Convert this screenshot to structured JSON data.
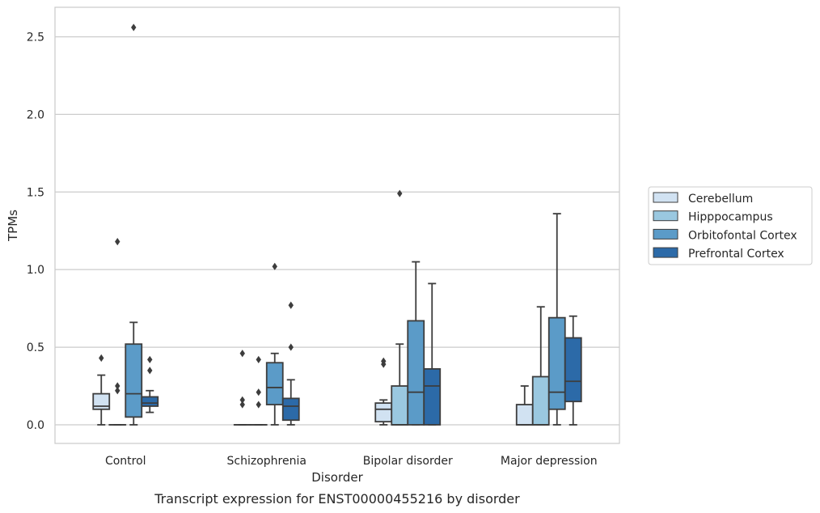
{
  "chart_data": {
    "type": "box",
    "caption": "Transcript expression for ENST00000455216 by disorder",
    "xlabel": "Disorder",
    "ylabel": "TPMs",
    "ylim": [
      -0.12,
      2.69
    ],
    "yticks": [
      0.0,
      0.5,
      1.0,
      1.5,
      2.0,
      2.5
    ],
    "ytick_labels": [
      "0.0",
      "0.5",
      "1.0",
      "1.5",
      "2.0",
      "2.5"
    ],
    "grid": true,
    "legend_position": "outside right",
    "categories": [
      "Control",
      "Schizophrenia",
      "Bipolar disorder",
      "Major depression"
    ],
    "series": [
      {
        "name": "Cerebellum",
        "color": "#d1e2f2",
        "boxes": [
          {
            "whislo": 0.0,
            "q1": 0.1,
            "med": 0.12,
            "q3": 0.2,
            "whishi": 0.32,
            "fliers": [
              0.43
            ]
          },
          {
            "whislo": 0.0,
            "q1": 0.0,
            "med": 0.0,
            "q3": 0.0,
            "whishi": 0.0,
            "fliers": [
              0.46,
              0.16,
              0.13
            ]
          },
          {
            "whislo": 0.0,
            "q1": 0.02,
            "med": 0.1,
            "q3": 0.14,
            "whishi": 0.16,
            "fliers": [
              0.41,
              0.39
            ]
          },
          {
            "whislo": 0.0,
            "q1": 0.0,
            "med": 0.0,
            "q3": 0.13,
            "whishi": 0.25,
            "fliers": []
          }
        ]
      },
      {
        "name": "Hipppocampus",
        "color": "#9ac8e0",
        "boxes": [
          {
            "whislo": 0.0,
            "q1": 0.0,
            "med": 0.0,
            "q3": 0.0,
            "whishi": 0.0,
            "fliers": [
              1.18,
              0.25,
              0.22
            ]
          },
          {
            "whislo": 0.0,
            "q1": 0.0,
            "med": 0.0,
            "q3": 0.0,
            "whishi": 0.0,
            "fliers": [
              0.42,
              0.21,
              0.13
            ]
          },
          {
            "whislo": 0.0,
            "q1": 0.0,
            "med": 0.0,
            "q3": 0.25,
            "whishi": 0.52,
            "fliers": [
              1.49
            ]
          },
          {
            "whislo": 0.0,
            "q1": 0.0,
            "med": 0.0,
            "q3": 0.31,
            "whishi": 0.76,
            "fliers": []
          }
        ]
      },
      {
        "name": "Orbitofontal Cortex",
        "color": "#5b9bc8",
        "boxes": [
          {
            "whislo": 0.0,
            "q1": 0.05,
            "med": 0.2,
            "q3": 0.52,
            "whishi": 0.66,
            "fliers": [
              2.56
            ]
          },
          {
            "whislo": 0.0,
            "q1": 0.13,
            "med": 0.24,
            "q3": 0.4,
            "whishi": 0.46,
            "fliers": [
              1.02
            ]
          },
          {
            "whislo": 0.0,
            "q1": 0.0,
            "med": 0.21,
            "q3": 0.67,
            "whishi": 1.05,
            "fliers": []
          },
          {
            "whislo": 0.0,
            "q1": 0.1,
            "med": 0.21,
            "q3": 0.69,
            "whishi": 1.36,
            "fliers": []
          }
        ]
      },
      {
        "name": "Prefrontal Cortex",
        "color": "#2c6aa8",
        "boxes": [
          {
            "whislo": 0.08,
            "q1": 0.12,
            "med": 0.14,
            "q3": 0.18,
            "whishi": 0.22,
            "fliers": [
              0.42,
              0.35
            ]
          },
          {
            "whislo": 0.0,
            "q1": 0.03,
            "med": 0.12,
            "q3": 0.17,
            "whishi": 0.29,
            "fliers": [
              0.77,
              0.5
            ]
          },
          {
            "whislo": 0.0,
            "q1": 0.0,
            "med": 0.25,
            "q3": 0.36,
            "whishi": 0.91,
            "fliers": []
          },
          {
            "whislo": 0.0,
            "q1": 0.15,
            "med": 0.28,
            "q3": 0.56,
            "whishi": 0.7,
            "fliers": []
          }
        ]
      }
    ]
  }
}
